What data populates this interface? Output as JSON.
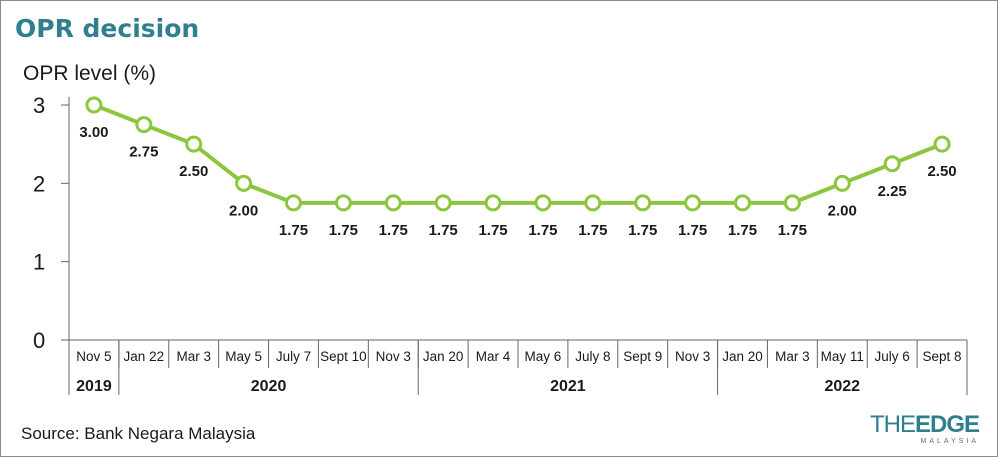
{
  "title": "OPR decision",
  "logo": {
    "main_thin": "THE",
    "main_bold": "EDGE",
    "sub": "MALAYSIA"
  },
  "source": "Source: Bank Negara Malaysia",
  "chart_data": {
    "type": "line",
    "title": "OPR decision",
    "ylabel": "OPR level (%)",
    "ylim": [
      0,
      3
    ],
    "yticks": [
      0,
      1,
      2,
      3
    ],
    "categories": [
      "Nov 5",
      "Jan 22",
      "Mar 3",
      "May 5",
      "July 7",
      "Sept 10",
      "Nov 3",
      "Jan 20",
      "Mar 4",
      "May 6",
      "July 8",
      "Sept 9",
      "Nov 3",
      "Jan 20",
      "Mar 3",
      "May 11",
      "July 6",
      "Sept 8"
    ],
    "values": [
      3.0,
      2.75,
      2.5,
      2.0,
      1.75,
      1.75,
      1.75,
      1.75,
      1.75,
      1.75,
      1.75,
      1.75,
      1.75,
      1.75,
      1.75,
      2.0,
      2.25,
      2.5
    ],
    "value_labels": [
      "3.00",
      "2.75",
      "2.50",
      "2.00",
      "1.75",
      "1.75",
      "1.75",
      "1.75",
      "1.75",
      "1.75",
      "1.75",
      "1.75",
      "1.75",
      "1.75",
      "1.75",
      "2.00",
      "2.25",
      "2.50"
    ],
    "years": [
      {
        "label": "2019",
        "start": 0,
        "end": 0
      },
      {
        "label": "2020",
        "start": 1,
        "end": 6
      },
      {
        "label": "2021",
        "start": 7,
        "end": 12
      },
      {
        "label": "2022",
        "start": 13,
        "end": 17
      }
    ],
    "colors": {
      "line": "#8cc63f",
      "marker_fill": "#ffffff",
      "text": "#1a1a1a",
      "axis": "#666666"
    },
    "grid": false
  }
}
